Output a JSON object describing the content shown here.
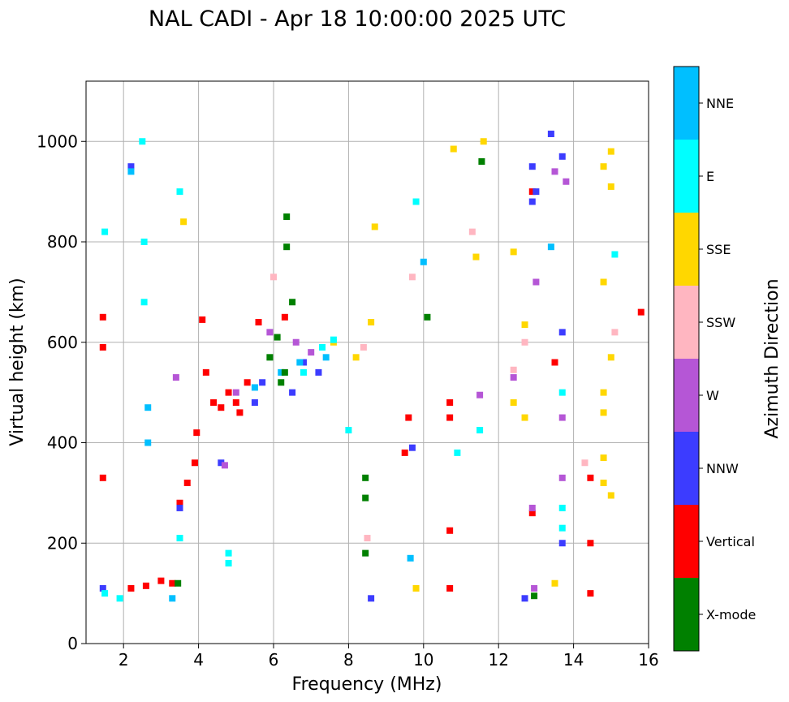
{
  "chart_data": {
    "type": "scatter",
    "title": "NAL CADI - Apr 18 10:00:00 2025 UTC",
    "xlabel": "Frequency (MHz)",
    "ylabel": "Virtual height (km)",
    "xlim": [
      1,
      16
    ],
    "ylim": [
      0,
      1120
    ],
    "xticks": [
      2,
      4,
      6,
      8,
      10,
      12,
      14,
      16
    ],
    "yticks": [
      0,
      200,
      400,
      600,
      800,
      1000
    ],
    "grid": true,
    "colorbar": {
      "label": "Azimuth Direction",
      "categories": [
        "X-mode",
        "Vertical",
        "NNW",
        "W",
        "SSW",
        "SSE",
        "E",
        "NNE"
      ],
      "colors": [
        "#008000",
        "#ff0000",
        "#3c3cff",
        "#b556d6",
        "#ffb6c1",
        "#ffd700",
        "#00ffff",
        "#00bfff"
      ]
    },
    "series": [
      {
        "name": "Vertical",
        "points": [
          [
            2.2,
            110
          ],
          [
            2.6,
            115
          ],
          [
            3.0,
            125
          ],
          [
            3.3,
            120
          ],
          [
            3.5,
            280
          ],
          [
            3.7,
            320
          ],
          [
            3.9,
            360
          ],
          [
            3.95,
            420
          ],
          [
            4.2,
            540
          ],
          [
            4.4,
            480
          ],
          [
            4.6,
            470
          ],
          [
            4.8,
            500
          ],
          [
            5.0,
            480
          ],
          [
            5.1,
            460
          ],
          [
            5.3,
            520
          ],
          [
            5.6,
            640
          ],
          [
            6.3,
            650
          ],
          [
            9.5,
            380
          ],
          [
            9.6,
            450
          ],
          [
            10.7,
            450
          ],
          [
            10.7,
            480
          ],
          [
            10.7,
            110
          ],
          [
            10.7,
            225
          ],
          [
            12.9,
            900
          ],
          [
            12.9,
            260
          ],
          [
            13.5,
            560
          ],
          [
            14.45,
            330
          ],
          [
            14.45,
            200
          ],
          [
            14.45,
            100
          ],
          [
            15.8,
            660
          ],
          [
            1.45,
            590
          ],
          [
            1.45,
            650
          ],
          [
            1.45,
            330
          ],
          [
            4.1,
            645
          ]
        ]
      },
      {
        "name": "NNW",
        "points": [
          [
            1.45,
            110
          ],
          [
            2.2,
            950
          ],
          [
            3.5,
            270
          ],
          [
            4.6,
            360
          ],
          [
            5.5,
            480
          ],
          [
            5.7,
            520
          ],
          [
            6.5,
            500
          ],
          [
            6.8,
            560
          ],
          [
            7.2,
            540
          ],
          [
            9.7,
            390
          ],
          [
            12.9,
            950
          ],
          [
            12.9,
            880
          ],
          [
            13.0,
            900
          ],
          [
            13.7,
            970
          ],
          [
            13.7,
            620
          ],
          [
            13.7,
            200
          ],
          [
            12.7,
            90
          ],
          [
            13.4,
            1015
          ],
          [
            8.6,
            90
          ]
        ]
      },
      {
        "name": "W",
        "points": [
          [
            3.4,
            530
          ],
          [
            4.7,
            355
          ],
          [
            5.0,
            500
          ],
          [
            5.9,
            620
          ],
          [
            6.6,
            600
          ],
          [
            7.0,
            580
          ],
          [
            12.4,
            530
          ],
          [
            12.9,
            270
          ],
          [
            12.95,
            110
          ],
          [
            13.7,
            330
          ],
          [
            13.7,
            450
          ],
          [
            13.8,
            920
          ],
          [
            13.5,
            940
          ],
          [
            13.0,
            720
          ],
          [
            11.5,
            495
          ]
        ]
      },
      {
        "name": "SSW",
        "points": [
          [
            6.0,
            730
          ],
          [
            8.4,
            590
          ],
          [
            9.7,
            730
          ],
          [
            11.3,
            820
          ],
          [
            12.4,
            545
          ],
          [
            12.7,
            600
          ],
          [
            14.3,
            360
          ],
          [
            15.1,
            620
          ],
          [
            8.5,
            210
          ]
        ]
      },
      {
        "name": "SSE",
        "points": [
          [
            3.6,
            840
          ],
          [
            7.6,
            600
          ],
          [
            8.2,
            570
          ],
          [
            8.6,
            640
          ],
          [
            8.7,
            830
          ],
          [
            10.8,
            985
          ],
          [
            11.6,
            1000
          ],
          [
            12.4,
            780
          ],
          [
            12.4,
            480
          ],
          [
            12.7,
            450
          ],
          [
            12.7,
            635
          ],
          [
            14.8,
            950
          ],
          [
            15.0,
            980
          ],
          [
            15.0,
            910
          ],
          [
            14.8,
            720
          ],
          [
            15.0,
            570
          ],
          [
            14.8,
            500
          ],
          [
            14.8,
            460
          ],
          [
            14.8,
            370
          ],
          [
            14.8,
            320
          ],
          [
            15.0,
            295
          ],
          [
            11.4,
            770
          ],
          [
            13.5,
            120
          ],
          [
            9.8,
            110
          ]
        ]
      },
      {
        "name": "E",
        "points": [
          [
            2.5,
            1000
          ],
          [
            2.55,
            800
          ],
          [
            2.55,
            680
          ],
          [
            1.5,
            820
          ],
          [
            1.5,
            100
          ],
          [
            1.9,
            90
          ],
          [
            3.5,
            900
          ],
          [
            3.5,
            210
          ],
          [
            4.8,
            180
          ],
          [
            4.8,
            160
          ],
          [
            6.8,
            540
          ],
          [
            7.3,
            590
          ],
          [
            7.6,
            605
          ],
          [
            8.0,
            425
          ],
          [
            9.8,
            880
          ],
          [
            10.9,
            380
          ],
          [
            13.7,
            270
          ],
          [
            13.7,
            230
          ],
          [
            13.7,
            500
          ],
          [
            15.1,
            775
          ],
          [
            11.5,
            425
          ]
        ]
      },
      {
        "name": "NNE",
        "points": [
          [
            2.2,
            940
          ],
          [
            2.65,
            470
          ],
          [
            2.65,
            400
          ],
          [
            3.3,
            90
          ],
          [
            5.5,
            510
          ],
          [
            6.2,
            540
          ],
          [
            6.7,
            560
          ],
          [
            7.4,
            570
          ],
          [
            9.65,
            170
          ],
          [
            10.0,
            760
          ],
          [
            13.4,
            790
          ]
        ]
      },
      {
        "name": "X-mode",
        "points": [
          [
            5.9,
            570
          ],
          [
            6.1,
            610
          ],
          [
            6.3,
            540
          ],
          [
            6.2,
            520
          ],
          [
            6.35,
            790
          ],
          [
            6.35,
            850
          ],
          [
            6.5,
            680
          ],
          [
            11.55,
            960
          ],
          [
            8.45,
            330
          ],
          [
            8.45,
            290
          ],
          [
            8.45,
            180
          ],
          [
            12.95,
            95
          ],
          [
            3.45,
            120
          ],
          [
            10.1,
            650
          ]
        ]
      }
    ]
  }
}
